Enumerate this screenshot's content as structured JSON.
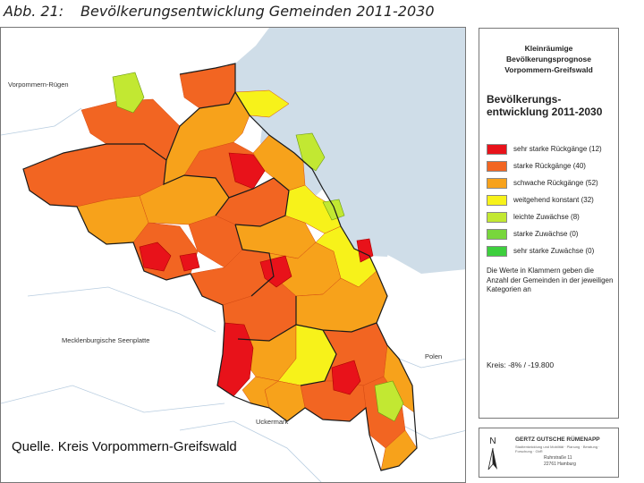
{
  "header": {
    "figure_label": "Abb. 21:",
    "title": "Bevölkerungsentwicklung Gemeinden 2011-2030"
  },
  "map": {
    "labels": {
      "vorpommern_ruegen": "Vorpommern-Rügen",
      "mecklenburgische_seenplatte": "Mecklenburgische Seenplatte",
      "polen": "Polen",
      "uckermark": "Uckermark"
    },
    "colors": {
      "sea": "#cfdde8",
      "land": "#ffffff",
      "outside_boundary": "#bcd0e2",
      "outline": "#1a1a1a"
    },
    "source_caption": "Quelle. Kreis Vorpommern-Greifswald"
  },
  "legend": {
    "title_lines": [
      "Kleinräumige",
      "Bevölkerungsprognose",
      "Vorpommern-Greifswald"
    ],
    "heading_lines": [
      "Bevölkerungs-",
      "entwicklung 2011-2030"
    ],
    "items": [
      {
        "label": "sehr starke Rückgänge (12)",
        "color": "#e8121a"
      },
      {
        "label": "starke Rückgänge (40)",
        "color": "#f26522"
      },
      {
        "label": "schwache Rückgänge (52)",
        "color": "#f7a21b"
      },
      {
        "label": "weitgehend konstant (32)",
        "color": "#f7f21a"
      },
      {
        "label": "leichte Zuwächse (8)",
        "color": "#c2e832"
      },
      {
        "label": "starke Zuwächse (0)",
        "color": "#78d63c"
      },
      {
        "label": "sehr starke Zuwächse (0)",
        "color": "#3dcf3d"
      }
    ],
    "note": "Die Werte in Klammern geben die Anzahl der Gemeinden in der jeweiligen Kategorien an",
    "kreis": "Kreis: -8% / -19.800"
  },
  "footer": {
    "north_letter": "N",
    "firm_name": "GERTZ GUTSCHE RÜMENAPP",
    "firm_subtitle": "Stadtentwicklung und Mobilität · Planung · Beratung · Forschung · GbR",
    "address_lines": [
      "Ruhrstraße 11",
      "22761 Hamburg"
    ]
  }
}
